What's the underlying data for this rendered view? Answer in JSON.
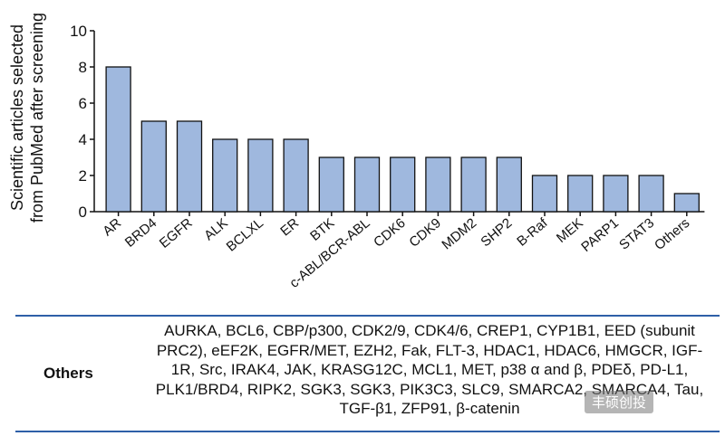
{
  "chart_data": {
    "type": "bar",
    "categories": [
      "AR",
      "BRD4",
      "EGFR",
      "ALK",
      "BCLXL",
      "ER",
      "BTK",
      "c-ABL/BCR-ABL",
      "CDK6",
      "CDK9",
      "MDM2",
      "SHP2",
      "B-Raf",
      "MEK",
      "PARP1",
      "STAT3",
      "Others"
    ],
    "values": [
      8,
      5,
      5,
      4,
      4,
      4,
      3,
      3,
      3,
      3,
      3,
      3,
      2,
      2,
      2,
      2,
      1
    ],
    "ylabel_line1": "Scientific articles selected",
    "ylabel_line2": "from PubMed after screening",
    "ylim": [
      0,
      10
    ],
    "yticks": [
      0,
      2,
      4,
      6,
      8,
      10
    ],
    "bar_color": "#9fb8de",
    "bar_stroke": "#111111"
  },
  "table": {
    "row_label": "Others",
    "row_text": "AURKA, BCL6, CBP/p300, CDK2/9, CDK4/6, CREP1, CYP1B1, EED (subunit PRC2), eEF2K, EGFR/MET, EZH2, Fak, FLT-3, HDAC1, HDAC6, HMGCR, IGF-1R, Src, IRAK4, JAK, KRASG12C, MCL1, MET, p38 α and β, PDEδ, PD-L1, PLK1/BRD4, RIPK2, SGK3, SGK3, PIK3C3, SLC9, SMARCA2, SMARCA4, Tau, TGF-β1, ZFP91, β-catenin",
    "rule_color": "#2e5fa8"
  },
  "watermark": "丰硕创投"
}
